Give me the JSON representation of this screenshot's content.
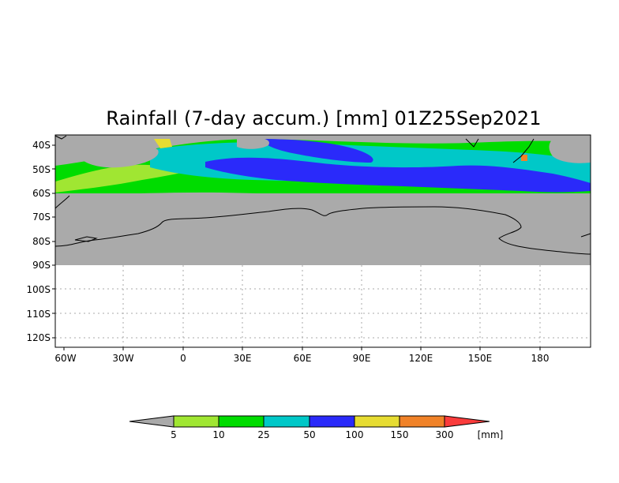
{
  "title": "Rainfall (7-day accum.) [mm] 01Z25Sep2021",
  "lat_labels": [
    "40S",
    "50S",
    "60S",
    "70S",
    "80S",
    "90S",
    "100S",
    "110S",
    "120S"
  ],
  "lon_labels": [
    "60W",
    "30W",
    "0",
    "30E",
    "60E",
    "90E",
    "120E",
    "150E",
    "180"
  ],
  "colorbar": {
    "levels": [
      "5",
      "10",
      "25",
      "50",
      "100",
      "150",
      "300"
    ],
    "unit": "[mm]",
    "colors": [
      "#aaaaaa",
      "#a0e632",
      "#00dc00",
      "#00c8c8",
      "#2a2afa",
      "#e6dc32",
      "#f08228",
      "#fa3c3c"
    ]
  },
  "map_colors": {
    "no_data": "#aaaaaa",
    "land_outline": "#000000",
    "grid": "#aaaaaa"
  }
}
